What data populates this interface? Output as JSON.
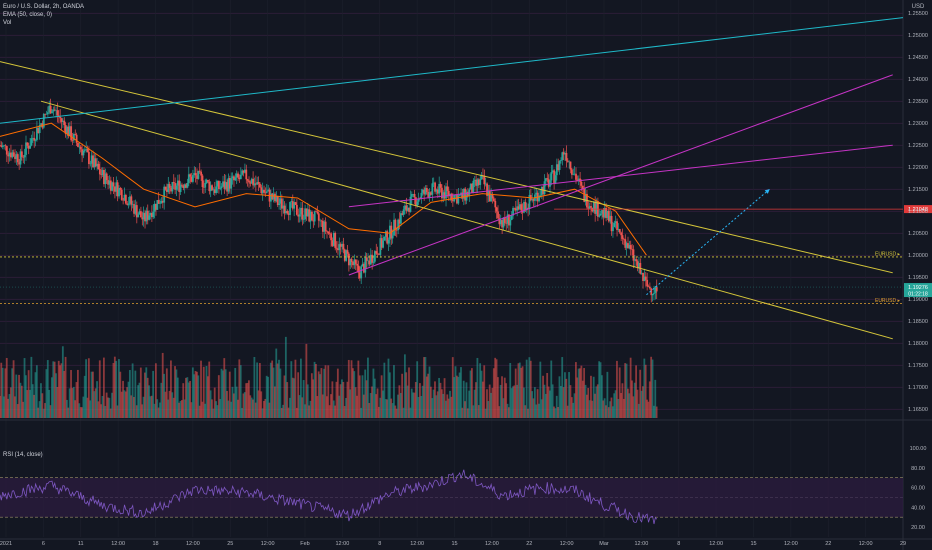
{
  "header": {
    "symbol": "Euro / U.S. Dollar, 2h, OANDA",
    "ema_label": "EMA (50, close, 0)",
    "vol_label": "Vol",
    "rsi_label": "RSI (14, close)",
    "currency": "USD"
  },
  "colors": {
    "background": "#131722",
    "up": "#26a69a",
    "down": "#ef5350",
    "ema": "#ff6d00",
    "trendline_yellow": "#d4c53a",
    "channel_magenta": "#c534c5",
    "trendline_cyan": "#1fb9c9",
    "projection_cyan": "#29b6f6",
    "rsi_line": "#7e57c2",
    "rsi_band": "#2a1b3d",
    "price_badge": "#26a69a",
    "level_badge_red": "#e03a3a"
  },
  "right_axis": {
    "price_ticks": [
      "1.25500",
      "1.25000",
      "1.24500",
      "1.24000",
      "1.23500",
      "1.23000",
      "1.22500",
      "1.22000",
      "1.21500",
      "1.21000",
      "1.20500",
      "1.20000",
      "1.19500",
      "1.19000",
      "1.18500",
      "1.18000",
      "1.17500",
      "1.17000",
      "1.16500"
    ],
    "rsi_ticks": [
      "100.00",
      "80.00",
      "60.00",
      "40.00",
      "20.00"
    ]
  },
  "time_axis": [
    "2021",
    "6",
    "11",
    "12:00",
    "18",
    "12:00",
    "25",
    "12:00",
    "Feb",
    "12:00",
    "8",
    "12:00",
    "15",
    "12:00",
    "22",
    "12:00",
    "Mar",
    "12:00",
    "8",
    "12:00",
    "15",
    "12:00",
    "22",
    "12:00",
    "29"
  ],
  "levels": [
    {
      "label": "EURUSD ▸",
      "price": 1.1996,
      "color": "#d4c53a"
    },
    {
      "label": "EURUSD ▸",
      "price": 1.189,
      "color": "#e0a030"
    },
    {
      "label": "1.21048",
      "price": 1.21048,
      "color": "#e03a3a"
    }
  ],
  "last_price": {
    "value": "1.19276",
    "countdown": "01:22:18"
  },
  "chart_data": [
    {
      "type": "candlestick",
      "pane": "price",
      "title": "Euro / U.S. Dollar, 2h, OANDA",
      "ylabel": "USD",
      "ylim": [
        1.163,
        1.258
      ],
      "x_range": [
        "2021-01-01",
        "2021-03-30"
      ],
      "series": [
        {
          "name": "EMA (50, close, 0)",
          "x": [
            "2021-01-01",
            "2021-01-06",
            "2021-01-11",
            "2021-01-15",
            "2021-01-20",
            "2021-01-25",
            "2021-01-30",
            "2021-02-04",
            "2021-02-08",
            "2021-02-12",
            "2021-02-17",
            "2021-02-22",
            "2021-02-26",
            "2021-03-02",
            "2021-03-05"
          ],
          "values": [
            1.227,
            1.23,
            1.222,
            1.215,
            1.211,
            1.214,
            1.213,
            1.206,
            1.205,
            1.212,
            1.214,
            1.213,
            1.215,
            1.21,
            1.2
          ]
        }
      ],
      "price_path": {
        "x": [
          "2021-01-01",
          "2021-01-03",
          "2021-01-06",
          "2021-01-08",
          "2021-01-11",
          "2021-01-13",
          "2021-01-15",
          "2021-01-17",
          "2021-01-20",
          "2021-01-22",
          "2021-01-25",
          "2021-01-28",
          "2021-02-01",
          "2021-02-03",
          "2021-02-05",
          "2021-02-08",
          "2021-02-10",
          "2021-02-12",
          "2021-02-15",
          "2021-02-17",
          "2021-02-19",
          "2021-02-22",
          "2021-02-24",
          "2021-02-25",
          "2021-02-27",
          "2021-03-01",
          "2021-03-03",
          "2021-03-05",
          "2021-03-06"
        ],
        "values": [
          1.225,
          1.222,
          1.234,
          1.227,
          1.218,
          1.214,
          1.208,
          1.214,
          1.218,
          1.215,
          1.218,
          1.212,
          1.208,
          1.202,
          1.196,
          1.205,
          1.212,
          1.215,
          1.213,
          1.217,
          1.207,
          1.213,
          1.218,
          1.224,
          1.213,
          1.209,
          1.203,
          1.193,
          1.192
        ]
      },
      "trendlines": [
        {
          "color": "yellow",
          "from": [
            "2021-01-01",
            1.244
          ],
          "to": [
            "2021-03-29",
            1.196
          ]
        },
        {
          "color": "yellow",
          "from": [
            "2021-01-05",
            1.235
          ],
          "to": [
            "2021-03-29",
            1.181
          ]
        },
        {
          "color": "cyan",
          "from": [
            "2021-01-01",
            1.23
          ],
          "to": [
            "2021-03-30",
            1.254
          ]
        },
        {
          "color": "magenta",
          "from": [
            "2021-02-04",
            1.1955
          ],
          "to": [
            "2021-03-29",
            1.241
          ]
        },
        {
          "color": "magenta",
          "from": [
            "2021-02-04",
            1.211
          ],
          "to": [
            "2021-03-29",
            1.225
          ]
        }
      ],
      "projection": {
        "points": [
          [
            "2021-03-05",
            1.191
          ],
          [
            "2021-03-10",
            1.201
          ],
          [
            "2021-03-17",
            1.215
          ]
        ]
      }
    },
    {
      "type": "bar",
      "pane": "volume",
      "title": "Vol",
      "note": "2h volume bars, red for down candles, green for up"
    },
    {
      "type": "line",
      "pane": "rsi",
      "title": "RSI (14, close)",
      "ylim": [
        10,
        100
      ],
      "bands": [
        30,
        70
      ],
      "x": [
        "2021-01-01",
        "2021-01-06",
        "2021-01-11",
        "2021-01-15",
        "2021-01-20",
        "2021-01-25",
        "2021-01-30",
        "2021-02-04",
        "2021-02-08",
        "2021-02-12",
        "2021-02-15",
        "2021-02-19",
        "2021-02-23",
        "2021-02-26",
        "2021-03-01",
        "2021-03-04",
        "2021-03-06"
      ],
      "values": [
        52,
        62,
        42,
        34,
        58,
        55,
        44,
        32,
        54,
        63,
        74,
        52,
        60,
        57,
        42,
        30,
        26
      ]
    }
  ]
}
